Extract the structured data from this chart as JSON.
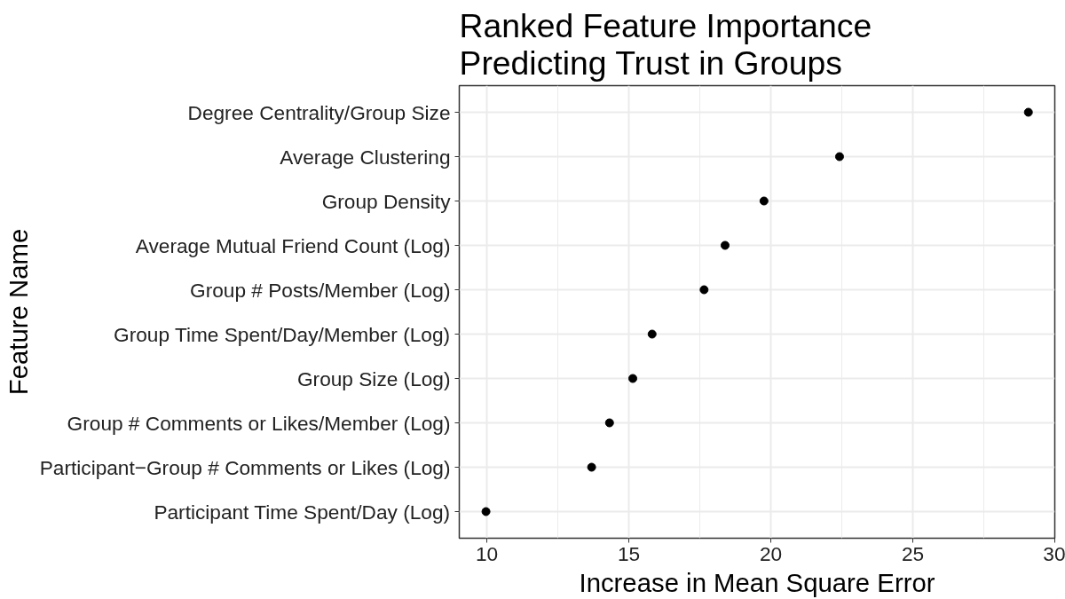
{
  "chart_data": {
    "type": "scatter",
    "title": "Ranked Feature Importance\nPredicting Trust in Groups",
    "xlabel": "Increase in Mean Square Error",
    "ylabel": "Feature Name",
    "categories": [
      "Degree Centrality/Group Size",
      "Average Clustering",
      "Group Density",
      "Average Mutual Friend Count (Log)",
      "Group # Posts/Member (Log)",
      "Group Time Spent/Day/Member (Log)",
      "Group Size (Log)",
      "Group # Comments or Likes/Member (Log)",
      "Participant−Group # Comments or Likes (Log)",
      "Participant Time Spent/Day (Log)"
    ],
    "orientation": "horizontal",
    "values": [
      29.07,
      22.42,
      19.76,
      18.39,
      17.65,
      15.82,
      15.14,
      14.32,
      13.69,
      9.97
    ],
    "color": "#000000",
    "marker": "circle",
    "xlim": [
      9.03,
      30.0
    ],
    "xticks": [
      10,
      15,
      20,
      25,
      30
    ],
    "grid": true
  }
}
